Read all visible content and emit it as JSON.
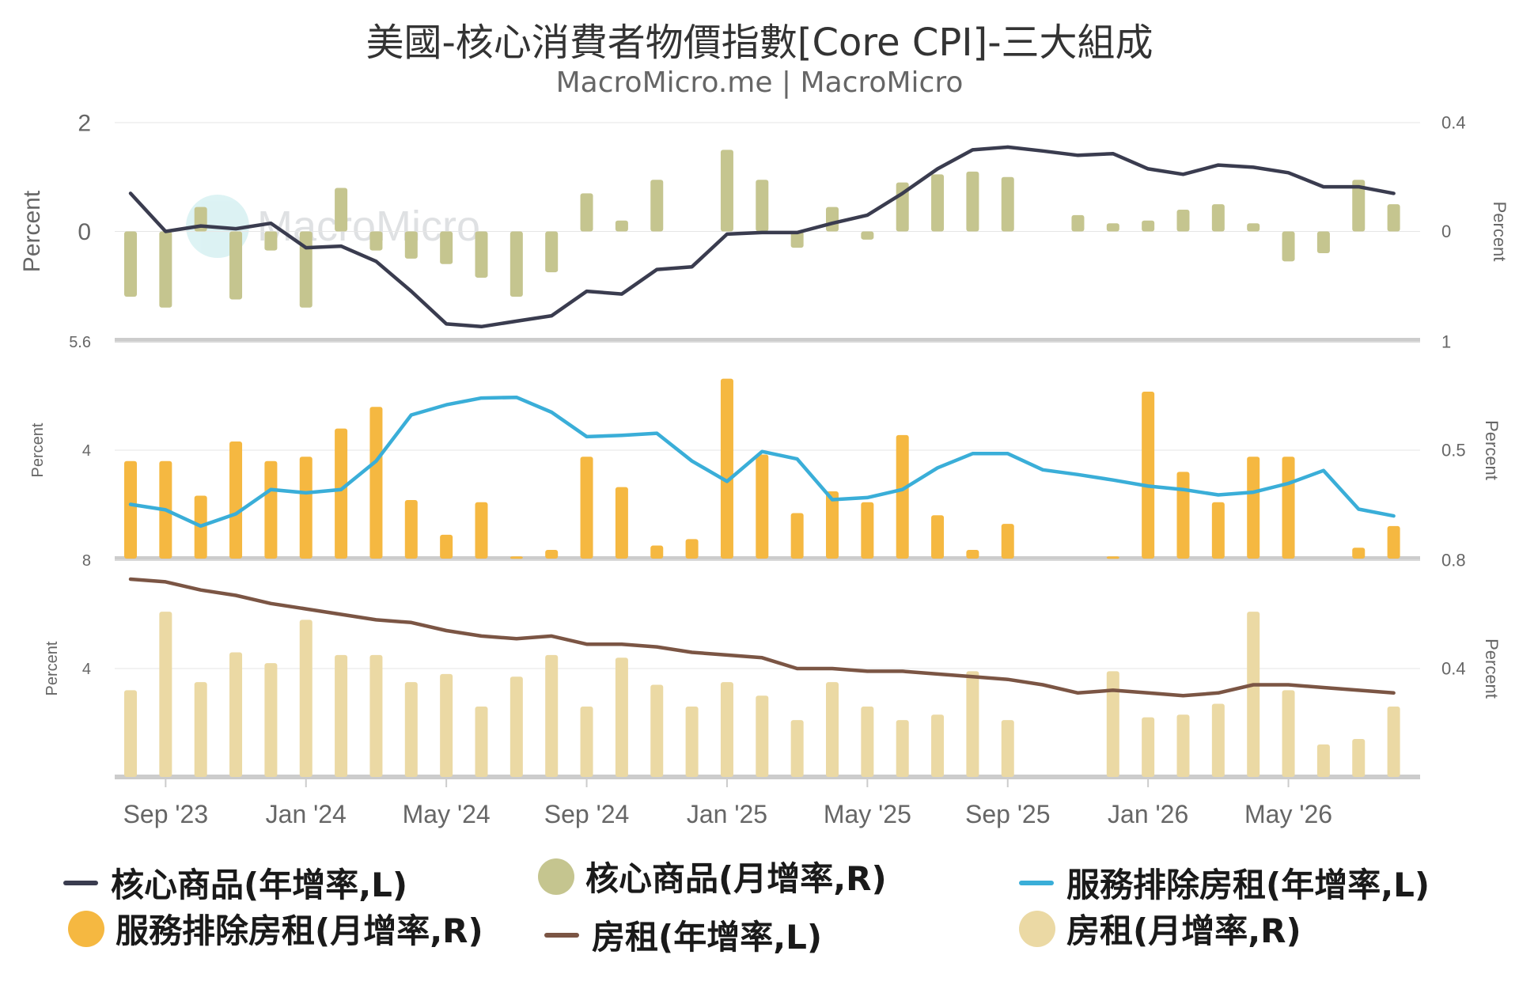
{
  "title": "美國-核心消費者物價指數[Core CPI]-三大組成",
  "subtitle": "MacroMicro.me | MacroMicro",
  "watermark": "MacroMicro",
  "x_tick_labels": [
    "Sep '23",
    "Jan '24",
    "May '24",
    "Sep '24",
    "Jan '25",
    "May '25",
    "Sep '25",
    "Jan '26",
    "May '26"
  ],
  "legend": [
    {
      "label": "核心商品(年增率,L)",
      "kind": "line",
      "color": "#3a3c4f"
    },
    {
      "label": "核心商品(月增率,R)",
      "kind": "dot",
      "color": "#c5c58f"
    },
    {
      "label": "服務排除房租(年增率,L)",
      "kind": "line",
      "color": "#3aaed8"
    },
    {
      "label": "服務排除房租(月增率,R)",
      "kind": "dot",
      "color": "#f5b841"
    },
    {
      "label": "房租(年增率,L)",
      "kind": "line",
      "color": "#7b5544"
    },
    {
      "label": "房租(月增率,R)",
      "kind": "dot",
      "color": "#ebd9a4"
    }
  ],
  "chart_data": [
    {
      "type": "bar+line",
      "panel": "core-goods",
      "x": [
        "2023-08",
        "2023-09",
        "2023-10",
        "2023-11",
        "2023-12",
        "2024-01",
        "2024-02",
        "2024-03",
        "2024-04",
        "2024-05",
        "2024-06",
        "2024-07",
        "2024-08",
        "2024-09",
        "2024-10",
        "2024-11",
        "2024-12",
        "2025-01",
        "2025-02",
        "2025-03",
        "2025-04",
        "2025-05",
        "2025-06",
        "2025-07",
        "2025-08",
        "2025-09",
        "2025-10",
        "2025-11",
        "2025-12",
        "2026-01",
        "2026-02",
        "2026-03",
        "2026-04",
        "2026-05",
        "2026-06",
        "2026-07",
        "2026-08"
      ],
      "left_axis": {
        "label": "Percent",
        "ticks": [
          "2",
          "0",
          ""
        ],
        "range": [
          -2,
          2
        ]
      },
      "right_axis": {
        "label": "Percent",
        "ticks": [
          "0.4",
          "0",
          ""
        ],
        "range": [
          -0.4,
          0.4
        ]
      },
      "series": [
        {
          "name": "核心商品(年增率,L)",
          "kind": "line",
          "axis": "left",
          "color": "#3a3c4f",
          "values": [
            0.7,
            0.0,
            0.1,
            0.05,
            0.15,
            -0.3,
            -0.27,
            -0.55,
            -1.1,
            -1.7,
            -1.75,
            -1.65,
            -1.55,
            -1.1,
            -1.15,
            -0.7,
            -0.65,
            -0.05,
            -0.02,
            -0.02,
            0.15,
            0.3,
            0.7,
            1.15,
            1.5,
            1.55,
            1.48,
            1.4,
            1.43,
            1.15,
            1.05,
            1.22,
            1.18,
            1.08,
            0.82,
            0.82,
            0.7
          ]
        },
        {
          "name": "核心商品(月增率,R)",
          "kind": "bar",
          "axis": "right",
          "color": "#c5c58f",
          "values": [
            -0.24,
            -0.28,
            0.09,
            -0.25,
            -0.07,
            -0.28,
            0.16,
            -0.07,
            -0.1,
            -0.12,
            -0.17,
            -0.24,
            -0.15,
            0.14,
            0.04,
            0.19,
            null,
            0.3,
            0.19,
            -0.06,
            0.09,
            -0.03,
            0.18,
            0.21,
            0.22,
            0.2,
            null,
            0.06,
            0.03,
            0.04,
            0.08,
            0.1,
            0.03,
            -0.11,
            -0.08,
            0.19,
            0.1
          ]
        }
      ]
    },
    {
      "type": "bar+line",
      "panel": "services-ex-rent",
      "x": [
        "2023-08",
        "2023-09",
        "2023-10",
        "2023-11",
        "2023-12",
        "2024-01",
        "2024-02",
        "2024-03",
        "2024-04",
        "2024-05",
        "2024-06",
        "2024-07",
        "2024-08",
        "2024-09",
        "2024-10",
        "2024-11",
        "2024-12",
        "2025-01",
        "2025-02",
        "2025-03",
        "2025-04",
        "2025-05",
        "2025-06",
        "2025-07",
        "2025-08",
        "2025-09",
        "2025-10",
        "2025-11",
        "2025-12",
        "2026-01",
        "2026-02",
        "2026-03",
        "2026-04",
        "2026-05",
        "2026-06",
        "2026-07",
        "2026-08"
      ],
      "left_axis": {
        "label": "Percent",
        "ticks": [
          "5.6",
          "4",
          ""
        ],
        "range": [
          2.4,
          5.6
        ]
      },
      "right_axis": {
        "label": "Percent",
        "ticks": [
          "1",
          "0.5",
          ""
        ],
        "range": [
          0,
          1
        ]
      },
      "series": [
        {
          "name": "服務排除房租(年增率,L)",
          "kind": "line",
          "axis": "left",
          "color": "#3aaed8",
          "values": [
            3.2,
            3.12,
            2.88,
            3.06,
            3.42,
            3.37,
            3.42,
            3.84,
            4.52,
            4.67,
            4.77,
            4.78,
            4.56,
            4.2,
            4.22,
            4.25,
            3.84,
            3.54,
            3.98,
            3.87,
            3.27,
            3.3,
            3.42,
            3.74,
            3.95,
            3.95,
            3.71,
            3.64,
            3.56,
            3.47,
            3.42,
            3.34,
            3.38,
            3.51,
            3.7,
            3.13,
            3.03
          ]
        },
        {
          "name": "服務排除房租(月增率,R)",
          "kind": "bar",
          "axis": "right",
          "color": "#f5b841",
          "values": [
            0.45,
            0.45,
            0.29,
            0.54,
            0.45,
            0.47,
            0.6,
            0.7,
            0.27,
            0.11,
            0.26,
            0.01,
            0.04,
            0.47,
            0.33,
            0.06,
            0.09,
            0.83,
            0.48,
            0.21,
            0.31,
            0.26,
            0.57,
            0.2,
            0.04,
            0.16,
            null,
            null,
            0.01,
            0.77,
            0.4,
            0.26,
            0.47,
            0.47,
            null,
            0.05,
            0.15
          ]
        }
      ]
    },
    {
      "type": "bar+line",
      "panel": "shelter",
      "x": [
        "2023-08",
        "2023-09",
        "2023-10",
        "2023-11",
        "2023-12",
        "2024-01",
        "2024-02",
        "2024-03",
        "2024-04",
        "2024-05",
        "2024-06",
        "2024-07",
        "2024-08",
        "2024-09",
        "2024-10",
        "2024-11",
        "2024-12",
        "2025-01",
        "2025-02",
        "2025-03",
        "2025-04",
        "2025-05",
        "2025-06",
        "2025-07",
        "2025-08",
        "2025-09",
        "2025-10",
        "2025-11",
        "2025-12",
        "2026-01",
        "2026-02",
        "2026-03",
        "2026-04",
        "2026-05",
        "2026-06",
        "2026-07",
        "2026-08"
      ],
      "left_axis": {
        "label": "Percent",
        "ticks": [
          "8",
          "4",
          ""
        ],
        "range": [
          0,
          8
        ]
      },
      "right_axis": {
        "label": "Percent",
        "ticks": [
          "0.8",
          "0.4",
          ""
        ],
        "range": [
          0,
          0.8
        ]
      },
      "series": [
        {
          "name": "房租(年增率,L)",
          "kind": "line",
          "axis": "left",
          "color": "#7b5544",
          "values": [
            7.3,
            7.2,
            6.9,
            6.7,
            6.4,
            6.2,
            6.0,
            5.8,
            5.7,
            5.4,
            5.2,
            5.1,
            5.2,
            4.9,
            4.9,
            4.8,
            4.6,
            4.5,
            4.4,
            4.0,
            4.0,
            3.9,
            3.9,
            3.8,
            3.7,
            3.6,
            3.4,
            3.1,
            3.2,
            3.1,
            3.0,
            3.1,
            3.4,
            3.4,
            3.3,
            3.2,
            3.1
          ]
        },
        {
          "name": "房租(月增率,R)",
          "kind": "bar",
          "axis": "right",
          "color": "#ebd9a4",
          "values": [
            0.32,
            0.61,
            0.35,
            0.46,
            0.42,
            0.58,
            0.45,
            0.45,
            0.35,
            0.38,
            0.26,
            0.37,
            0.45,
            0.26,
            0.44,
            0.34,
            0.26,
            0.35,
            0.3,
            0.21,
            0.35,
            0.26,
            0.21,
            0.23,
            0.39,
            0.21,
            null,
            null,
            0.39,
            0.22,
            0.23,
            0.27,
            0.61,
            0.32,
            0.12,
            0.14,
            0.26
          ]
        }
      ]
    }
  ]
}
